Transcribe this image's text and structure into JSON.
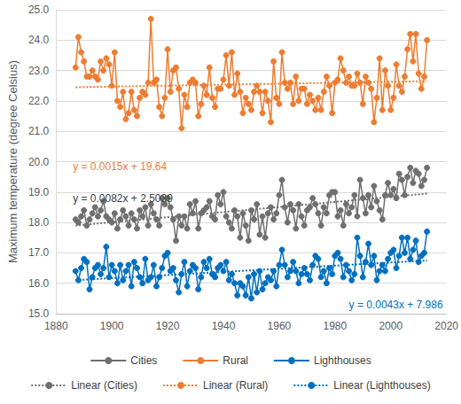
{
  "chart_data": {
    "type": "line",
    "ylabel": "Maximum temperature (degree Celsius)",
    "xlim": [
      1880,
      2020
    ],
    "xticks": [
      1880,
      1900,
      1920,
      1940,
      1960,
      1980,
      2000,
      2020
    ],
    "ylim": [
      15,
      25
    ],
    "yticks": [
      {
        "value": 15,
        "label": "15.0"
      },
      {
        "value": 16,
        "label": "16.0"
      },
      {
        "value": 17,
        "label": "17.0"
      },
      {
        "value": 18,
        "label": "18.0"
      },
      {
        "value": 19,
        "label": "19.0"
      },
      {
        "value": 20,
        "label": "20.0"
      },
      {
        "value": 21,
        "label": "21.0"
      },
      {
        "value": 22,
        "label": "22.0"
      },
      {
        "value": 23,
        "label": "23.0"
      },
      {
        "value": 24,
        "label": "24.0"
      },
      {
        "value": 25,
        "label": "25.0"
      }
    ],
    "grid": "y",
    "legend": "bottom",
    "x": [
      1887,
      1888,
      1889,
      1890,
      1891,
      1892,
      1893,
      1894,
      1895,
      1896,
      1897,
      1898,
      1899,
      1900,
      1901,
      1902,
      1903,
      1904,
      1905,
      1906,
      1907,
      1908,
      1909,
      1910,
      1911,
      1912,
      1913,
      1914,
      1915,
      1916,
      1917,
      1918,
      1919,
      1920,
      1921,
      1922,
      1923,
      1924,
      1925,
      1926,
      1927,
      1928,
      1929,
      1930,
      1931,
      1932,
      1933,
      1934,
      1935,
      1936,
      1937,
      1938,
      1939,
      1940,
      1941,
      1942,
      1943,
      1944,
      1945,
      1946,
      1947,
      1948,
      1949,
      1950,
      1951,
      1952,
      1953,
      1954,
      1955,
      1956,
      1957,
      1958,
      1959,
      1960,
      1961,
      1962,
      1963,
      1964,
      1965,
      1966,
      1967,
      1968,
      1969,
      1970,
      1971,
      1972,
      1973,
      1974,
      1975,
      1976,
      1977,
      1978,
      1979,
      1980,
      1981,
      1982,
      1983,
      1984,
      1985,
      1986,
      1987,
      1988,
      1989,
      1990,
      1991,
      1992,
      1993,
      1994,
      1995,
      1996,
      1997,
      1998,
      1999,
      2000,
      2001,
      2002,
      2003,
      2004,
      2005,
      2006,
      2007,
      2008,
      2009,
      2010,
      2011,
      2012,
      2013
    ],
    "series": [
      {
        "name": "Cities",
        "color": "#6f6f6f",
        "marker": "circle",
        "line_style": "solid",
        "values": [
          18.1,
          18.0,
          18.2,
          18.4,
          17.9,
          18.1,
          18.3,
          18.5,
          18.2,
          18.4,
          18.7,
          18.2,
          18.1,
          18.0,
          18.3,
          17.8,
          18.1,
          18.4,
          18.2,
          17.9,
          18.3,
          18.1,
          17.8,
          18.4,
          18.2,
          18.5,
          17.9,
          18.6,
          18.3,
          18.1,
          17.9,
          18.8,
          18.6,
          18.8,
          18.5,
          18.1,
          17.4,
          18.2,
          17.9,
          18.2,
          17.8,
          18.6,
          18.3,
          18.7,
          17.8,
          18.3,
          18.4,
          18.5,
          18.7,
          18.2,
          18.1,
          18.9,
          18.6,
          19.0,
          18.2,
          18.0,
          17.8,
          18.4,
          18.2,
          17.5,
          18.3,
          17.9,
          17.4,
          18.4,
          18.1,
          18.6,
          17.6,
          18.2,
          17.5,
          18.3,
          18.5,
          18.1,
          18.3,
          18.9,
          19.4,
          18.5,
          18.0,
          18.6,
          18.4,
          17.8,
          18.6,
          18.2,
          17.9,
          18.4,
          18.5,
          18.8,
          18.6,
          18.3,
          17.9,
          18.5,
          18.3,
          18.9,
          19.0,
          19.0,
          18.2,
          18.4,
          17.9,
          18.6,
          18.3,
          18.5,
          18.9,
          18.2,
          19.4,
          18.8,
          18.3,
          18.9,
          18.5,
          19.2,
          18.7,
          18.4,
          18.1,
          18.9,
          19.3,
          18.9,
          19.1,
          18.8,
          19.6,
          19.4,
          18.9,
          19.5,
          19.8,
          19.3,
          19.7,
          19.6,
          19.2,
          19.4,
          19.8
        ]
      },
      {
        "name": "Rural",
        "color": "#ed7d31",
        "marker": "circle",
        "line_style": "solid",
        "values": [
          23.1,
          24.1,
          23.6,
          23.3,
          22.8,
          22.8,
          23.0,
          22.8,
          22.7,
          23.3,
          23.0,
          23.4,
          23.2,
          22.5,
          23.6,
          22.0,
          21.8,
          22.3,
          21.4,
          21.6,
          22.3,
          21.7,
          21.5,
          22.1,
          22.3,
          22.2,
          22.6,
          24.7,
          22.6,
          22.7,
          21.8,
          21.5,
          22.1,
          23.7,
          22.3,
          23.0,
          23.1,
          22.4,
          21.1,
          22.2,
          21.8,
          22.6,
          22.7,
          22.6,
          21.5,
          21.9,
          22.5,
          22.2,
          23.1,
          22.1,
          21.8,
          22.4,
          22.4,
          22.7,
          23.5,
          22.5,
          23.6,
          22.2,
          22.9,
          22.3,
          21.6,
          22.1,
          21.9,
          21.7,
          22.3,
          22.5,
          22.3,
          21.6,
          22.3,
          22.0,
          21.3,
          23.3,
          22.1,
          21.9,
          23.6,
          22.6,
          22.4,
          22.6,
          21.9,
          22.8,
          22.0,
          22.4,
          22.4,
          21.9,
          22.2,
          22.0,
          21.7,
          22.1,
          21.7,
          22.3,
          22.8,
          22.5,
          21.6,
          22.6,
          22.7,
          23.4,
          23.0,
          22.6,
          22.8,
          22.5,
          22.5,
          22.9,
          22.6,
          21.9,
          22.8,
          22.6,
          22.4,
          21.3,
          22.1,
          23.4,
          21.7,
          23.0,
          22.5,
          21.7,
          22.1,
          23.2,
          22.5,
          22.3,
          22.8,
          23.7,
          24.2,
          23.3,
          24.2,
          22.9,
          22.4,
          22.8,
          24.0
        ]
      },
      {
        "name": "Lighthouses",
        "color": "#0070c0",
        "marker": "circle",
        "line_style": "solid",
        "values": [
          16.4,
          16.1,
          16.5,
          16.8,
          16.7,
          15.8,
          16.2,
          16.5,
          16.6,
          16.3,
          16.5,
          17.2,
          16.2,
          16.6,
          16.4,
          16.0,
          16.6,
          16.1,
          16.4,
          16.6,
          15.9,
          16.7,
          16.5,
          16.2,
          16.0,
          16.8,
          16.1,
          16.2,
          16.6,
          15.9,
          16.2,
          16.5,
          16.9,
          17.0,
          16.4,
          16.5,
          16.1,
          15.7,
          16.3,
          16.7,
          15.9,
          16.4,
          16.6,
          16.5,
          15.8,
          16.2,
          16.7,
          16.5,
          16.8,
          16.3,
          16.2,
          16.5,
          16.6,
          16.4,
          16.7,
          16.1,
          16.3,
          16.0,
          15.6,
          16.0,
          15.9,
          15.6,
          16.2,
          15.5,
          16.3,
          15.7,
          16.4,
          15.8,
          16.0,
          16.2,
          16.1,
          16.4,
          15.9,
          16.6,
          17.1,
          16.6,
          16.2,
          16.4,
          16.7,
          16.4,
          16.0,
          16.3,
          16.5,
          16.3,
          16.1,
          16.6,
          16.9,
          16.8,
          16.2,
          16.4,
          16.0,
          16.5,
          16.3,
          16.9,
          17.0,
          16.8,
          16.2,
          16.6,
          16.4,
          16.1,
          16.3,
          17.5,
          16.9,
          16.2,
          16.7,
          17.3,
          16.6,
          16.9,
          16.1,
          16.4,
          16.6,
          16.4,
          16.8,
          17.0,
          17.1,
          16.5,
          16.9,
          17.5,
          17.0,
          17.5,
          16.8,
          17.1,
          17.4,
          16.7,
          16.9,
          17.0,
          17.7
        ]
      },
      {
        "name": "Linear (Cities)",
        "color": "#6f6f6f",
        "line_style": "dotted",
        "x": [
          1887,
          2013
        ],
        "values": [
          17.9,
          18.95
        ]
      },
      {
        "name": "Linear (Rural)",
        "color": "#ed7d31",
        "line_style": "dotted",
        "x": [
          1887,
          2013
        ],
        "values": [
          22.45,
          22.65
        ]
      },
      {
        "name": "Linear (Lighthouses)",
        "color": "#0070c0",
        "line_style": "dotted",
        "x": [
          1887,
          2013
        ],
        "values": [
          16.1,
          16.75
        ]
      }
    ],
    "annotations": [
      {
        "text": "y = 0.0015x + 19.64",
        "x": 1886,
        "y": 19.85,
        "color": "#ed7d31"
      },
      {
        "text": "y = 0.0082x + 2.5039",
        "x": 1886,
        "y": 18.8,
        "color": "#404040"
      },
      {
        "text": "y = 0.0043x + 7.986",
        "x": 1985,
        "y": 15.3,
        "color": "#0070c0"
      }
    ]
  }
}
